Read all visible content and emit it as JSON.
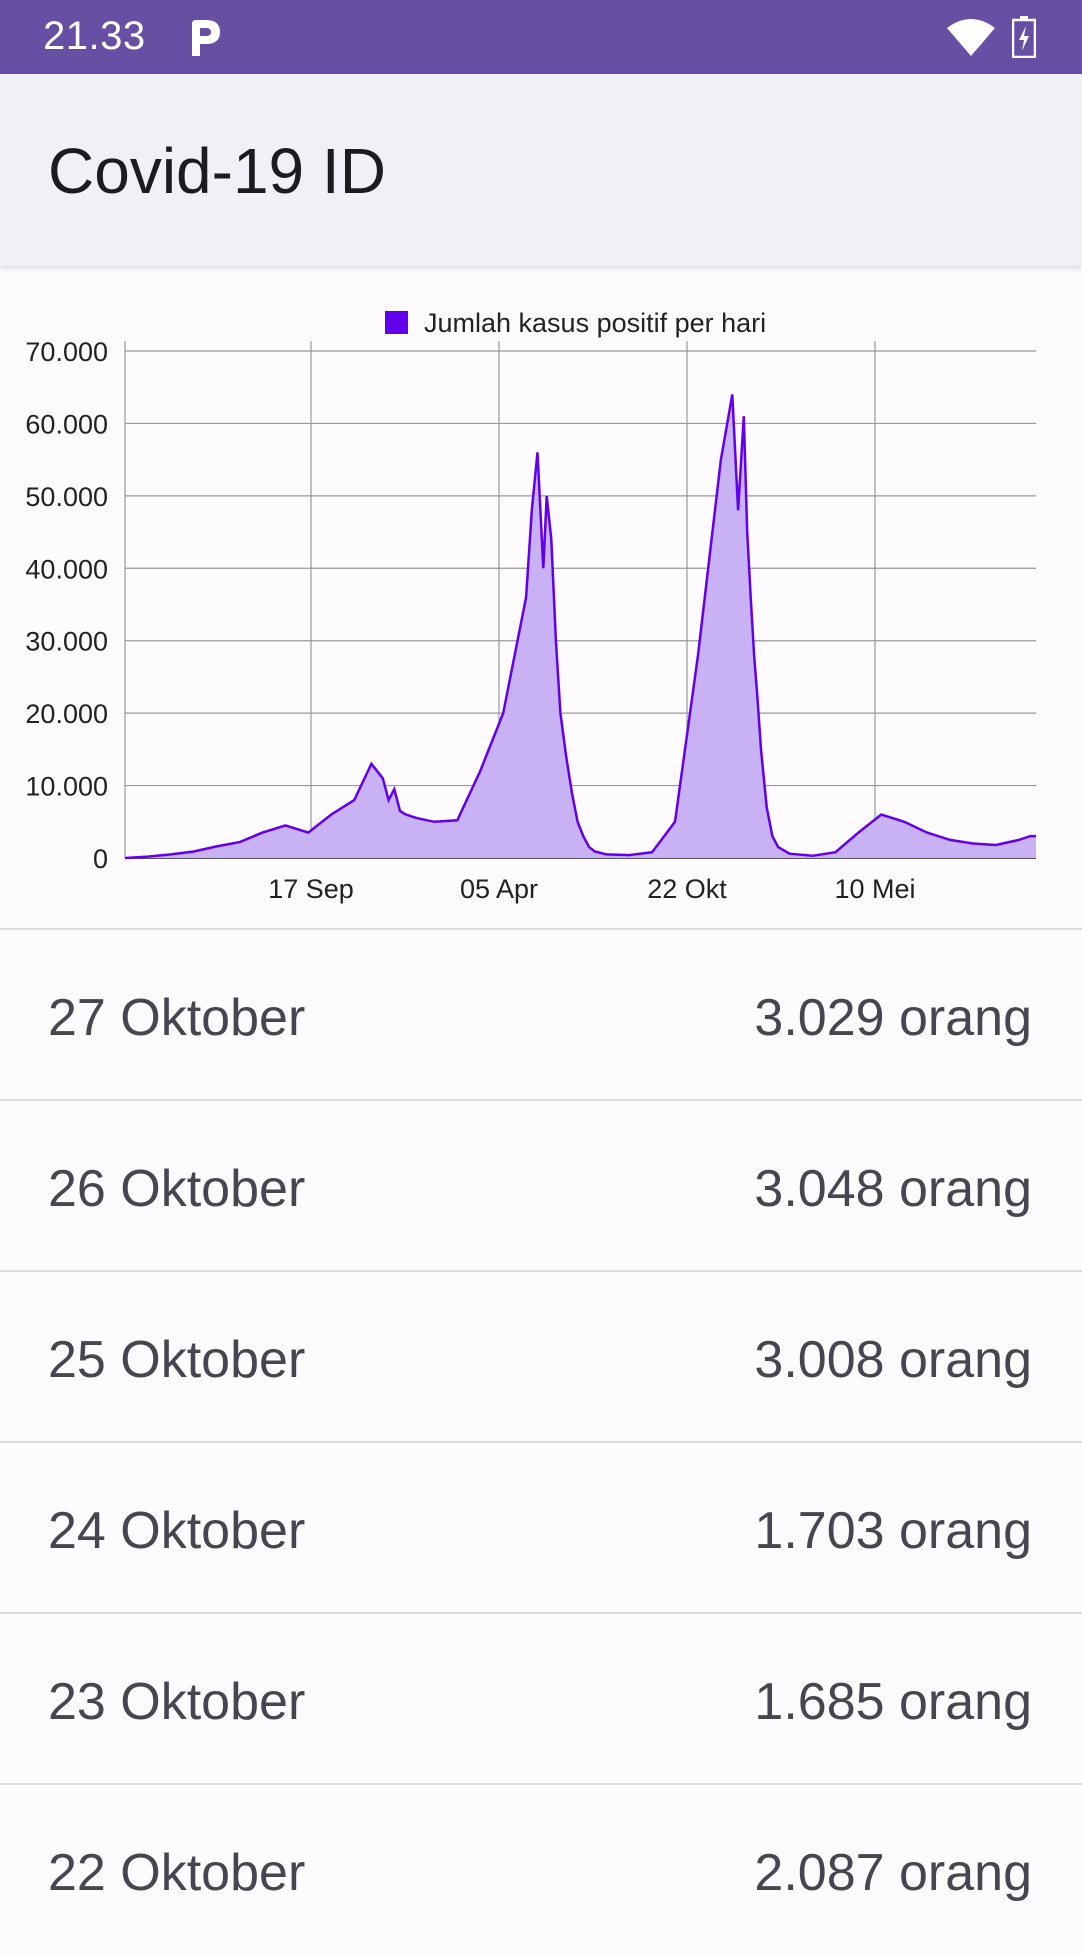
{
  "status_bar": {
    "time": "21.33",
    "icons": [
      "p-app-icon",
      "wifi-icon",
      "battery-charging-icon"
    ]
  },
  "app_bar": {
    "title": "Covid-19 ID"
  },
  "colors": {
    "status_bar": "#6750a4",
    "app_bar": "#f3eff6",
    "series_line": "#6200ee",
    "series_fill": "#c9b2f3",
    "legend_square": "#6200ee"
  },
  "chart_data": {
    "type": "area",
    "legend": [
      "Jumlah kasus positif per hari"
    ],
    "legend_position": "top-center",
    "x_ticks": [
      "17 Sep",
      "05 Apr",
      "22 Okt",
      "10 Mei"
    ],
    "y_ticks": [
      "0",
      "10.000",
      "20.000",
      "30.000",
      "40.000",
      "50.000",
      "60.000",
      "70.000"
    ],
    "ylim": [
      0,
      70000
    ],
    "grid": true,
    "series": [
      {
        "name": "Jumlah kasus positif per hari",
        "x_index": [
          0,
          20,
          40,
          60,
          80,
          100,
          120,
          140,
          160,
          180,
          200,
          215,
          225,
          230,
          235,
          240,
          245,
          255,
          270,
          290,
          310,
          330,
          350,
          355,
          360,
          365,
          368,
          372,
          376,
          380,
          385,
          390,
          395,
          400,
          405,
          410,
          420,
          440,
          460,
          480,
          500,
          520,
          530,
          535,
          540,
          543,
          546,
          549,
          552,
          555,
          560,
          565,
          570,
          580,
          600,
          620,
          640,
          660,
          680,
          700,
          720,
          740,
          760,
          780,
          790,
          795
        ],
        "values": [
          0,
          200,
          500,
          900,
          1600,
          2200,
          3500,
          4500,
          3500,
          6000,
          8000,
          13000,
          11000,
          8000,
          9500,
          6500,
          6000,
          5500,
          5000,
          5200,
          12000,
          20000,
          36000,
          48000,
          56000,
          40000,
          50000,
          44000,
          30000,
          20000,
          14000,
          9000,
          5000,
          3000,
          1500,
          900,
          500,
          400,
          800,
          5000,
          28000,
          55000,
          64000,
          48000,
          61000,
          45000,
          36000,
          28000,
          22000,
          15000,
          7000,
          3000,
          1500,
          600,
          300,
          800,
          3500,
          6000,
          5000,
          3500,
          2500,
          2000,
          1800,
          2500,
          3029,
          3029
        ]
      }
    ]
  },
  "list": {
    "unit": "orang",
    "items": [
      {
        "date": "27 Oktober",
        "count": "3.029 orang"
      },
      {
        "date": "26 Oktober",
        "count": "3.048 orang"
      },
      {
        "date": "25 Oktober",
        "count": "3.008 orang"
      },
      {
        "date": "24 Oktober",
        "count": "1.703 orang"
      },
      {
        "date": "23 Oktober",
        "count": "1.685 orang"
      },
      {
        "date": "22 Oktober",
        "count": "2.087 orang"
      }
    ]
  }
}
